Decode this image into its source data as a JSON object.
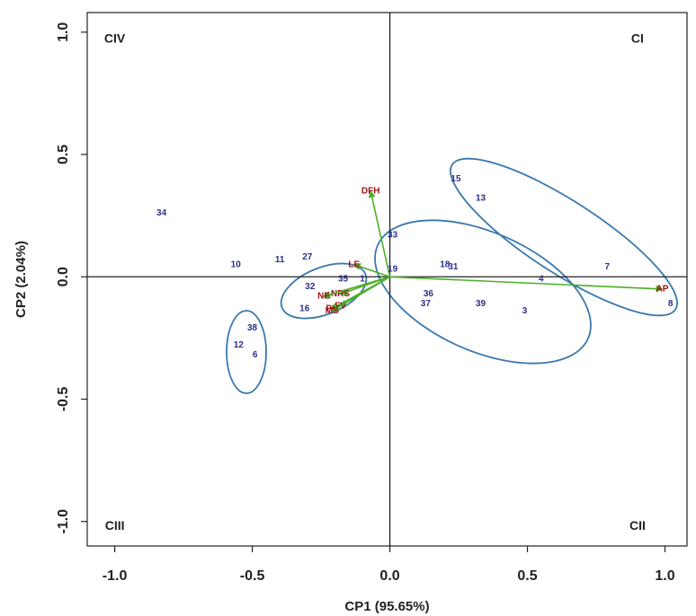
{
  "chart_data": {
    "type": "scatter",
    "xlabel": "CP1 (95.65%)",
    "ylabel": "CP2 (2.04%)",
    "xlim": [
      -1.1,
      1.08
    ],
    "ylim": [
      -1.1,
      1.08
    ],
    "xticks": [
      "-1.0",
      "-0.5",
      "0.0",
      "0.5",
      "1.0"
    ],
    "yticks": [
      "-1.0",
      "-0.5",
      "0.0",
      "0.5",
      "1.0"
    ],
    "xtick_values": [
      -1.0,
      -0.5,
      0.0,
      0.5,
      1.0
    ],
    "ytick_values": [
      -1.0,
      -0.5,
      0.0,
      0.5,
      1.0
    ],
    "grid": false,
    "quadrants": [
      {
        "label": "CI",
        "x": 0.9,
        "y": 0.97
      },
      {
        "label": "CII",
        "x": 0.9,
        "y": -1.02
      },
      {
        "label": "CIII",
        "x": -1.0,
        "y": -1.02
      },
      {
        "label": "CIV",
        "x": -1.0,
        "y": 0.97
      }
    ],
    "points": [
      {
        "label": "34",
        "x": -0.83,
        "y": 0.26
      },
      {
        "label": "10",
        "x": -0.56,
        "y": 0.05
      },
      {
        "label": "11",
        "x": -0.4,
        "y": 0.07
      },
      {
        "label": "27",
        "x": -0.3,
        "y": 0.08
      },
      {
        "label": "32",
        "x": -0.29,
        "y": -0.04
      },
      {
        "label": "35",
        "x": -0.17,
        "y": -0.01
      },
      {
        "label": "16",
        "x": -0.31,
        "y": -0.13
      },
      {
        "label": "1",
        "x": -0.1,
        "y": -0.01
      },
      {
        "label": "38",
        "x": -0.5,
        "y": -0.21
      },
      {
        "label": "12",
        "x": -0.55,
        "y": -0.28
      },
      {
        "label": "6",
        "x": -0.49,
        "y": -0.32
      },
      {
        "label": "33",
        "x": 0.01,
        "y": 0.17
      },
      {
        "label": "19",
        "x": 0.01,
        "y": 0.03
      },
      {
        "label": "18",
        "x": 0.2,
        "y": 0.05
      },
      {
        "label": "31",
        "x": 0.23,
        "y": 0.04
      },
      {
        "label": "15",
        "x": 0.24,
        "y": 0.4
      },
      {
        "label": "13",
        "x": 0.33,
        "y": 0.32
      },
      {
        "label": "36",
        "x": 0.14,
        "y": -0.07
      },
      {
        "label": "37",
        "x": 0.13,
        "y": -0.11
      },
      {
        "label": "39",
        "x": 0.33,
        "y": -0.11
      },
      {
        "label": "3",
        "x": 0.49,
        "y": -0.14
      },
      {
        "label": "4",
        "x": 0.55,
        "y": -0.01
      },
      {
        "label": "7",
        "x": 0.79,
        "y": 0.04
      },
      {
        "label": "8",
        "x": 1.02,
        "y": -0.11
      }
    ],
    "vectors": [
      {
        "label": "AP",
        "x": 0.99,
        "y": -0.05
      },
      {
        "label": "DFH",
        "x": -0.07,
        "y": 0.35
      },
      {
        "label": "LE",
        "x": -0.13,
        "y": 0.05
      },
      {
        "label": "NRS",
        "x": -0.18,
        "y": -0.07
      },
      {
        "label": "NE",
        "x": -0.24,
        "y": -0.08
      },
      {
        "label": "PH",
        "x": -0.21,
        "y": -0.13
      },
      {
        "label": "FV",
        "x": -0.18,
        "y": -0.12
      },
      {
        "label": "MS",
        "x": -0.21,
        "y": -0.14
      }
    ],
    "colors": {
      "points": "#2b2f8a",
      "vectors": "#4caf28",
      "vector_labels": "#9a1010",
      "ellipses": "#3b78ad",
      "axes": "#222222"
    }
  }
}
